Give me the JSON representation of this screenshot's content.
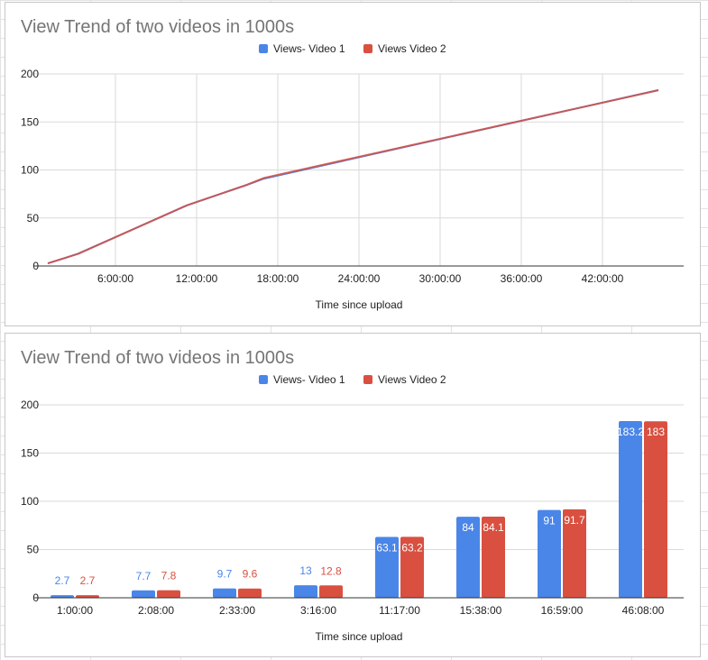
{
  "charts": [
    {
      "id": "line",
      "chart_data": {
        "type": "line",
        "title": "View Trend of two videos in 1000s",
        "xlabel": "Time since upload",
        "ylabel": "",
        "x_unit": "hours",
        "xlim": [
          0,
          48
        ],
        "ylim": [
          0,
          200
        ],
        "x_ticks": [
          6,
          12,
          18,
          24,
          30,
          36,
          42
        ],
        "x_tick_labels": [
          "6:00:00",
          "12:00:00",
          "18:00:00",
          "24:00:00",
          "30:00:00",
          "36:00:00",
          "42:00:00"
        ],
        "y_ticks": [
          0,
          50,
          100,
          150,
          200
        ],
        "y_tick_labels": [
          "0",
          "50",
          "100",
          "150",
          "200"
        ],
        "grid": true,
        "legend_position": "top",
        "series": [
          {
            "name": "Views- Video 1",
            "color": "#4a86e8",
            "x": [
              1.0,
              2.133,
              2.55,
              3.267,
              11.283,
              15.633,
              16.983,
              46.133
            ],
            "y": [
              2.7,
              7.7,
              9.7,
              13,
              63.1,
              84,
              91,
              183.2
            ]
          },
          {
            "name": "Views Video 2",
            "color": "#d95040",
            "x": [
              1.0,
              2.133,
              2.55,
              3.267,
              11.283,
              15.633,
              16.983,
              46.133
            ],
            "y": [
              2.7,
              7.8,
              9.6,
              12.8,
              63.2,
              84.1,
              91.7,
              183
            ]
          }
        ]
      }
    },
    {
      "id": "bar",
      "chart_data": {
        "type": "bar",
        "title": "View Trend of two videos in 1000s",
        "xlabel": "Time since upload",
        "ylabel": "",
        "categories": [
          "1:00:00",
          "2:08:00",
          "2:33:00",
          "3:16:00",
          "11:17:00",
          "15:38:00",
          "16:59:00",
          "46:08:00"
        ],
        "ylim": [
          0,
          200
        ],
        "y_ticks": [
          0,
          50,
          100,
          150,
          200
        ],
        "y_tick_labels": [
          "0",
          "50",
          "100",
          "150",
          "200"
        ],
        "grid": true,
        "legend_position": "top",
        "data_labels": true,
        "series": [
          {
            "name": "Views- Video 1",
            "color": "#4a86e8",
            "values": [
              2.7,
              7.7,
              9.7,
              13,
              63.1,
              84,
              91,
              183.2
            ],
            "labels": [
              "2.7",
              "7.7",
              "9.7",
              "13",
              "63.1",
              "84",
              "91",
              "183.2"
            ]
          },
          {
            "name": "Views Video 2",
            "color": "#d95040",
            "values": [
              2.7,
              7.8,
              9.6,
              12.8,
              63.2,
              84.1,
              91.7,
              183
            ],
            "labels": [
              "2.7",
              "7.8",
              "9.6",
              "12.8",
              "63.2",
              "84.1",
              "91.7",
              "183"
            ]
          }
        ]
      }
    }
  ]
}
